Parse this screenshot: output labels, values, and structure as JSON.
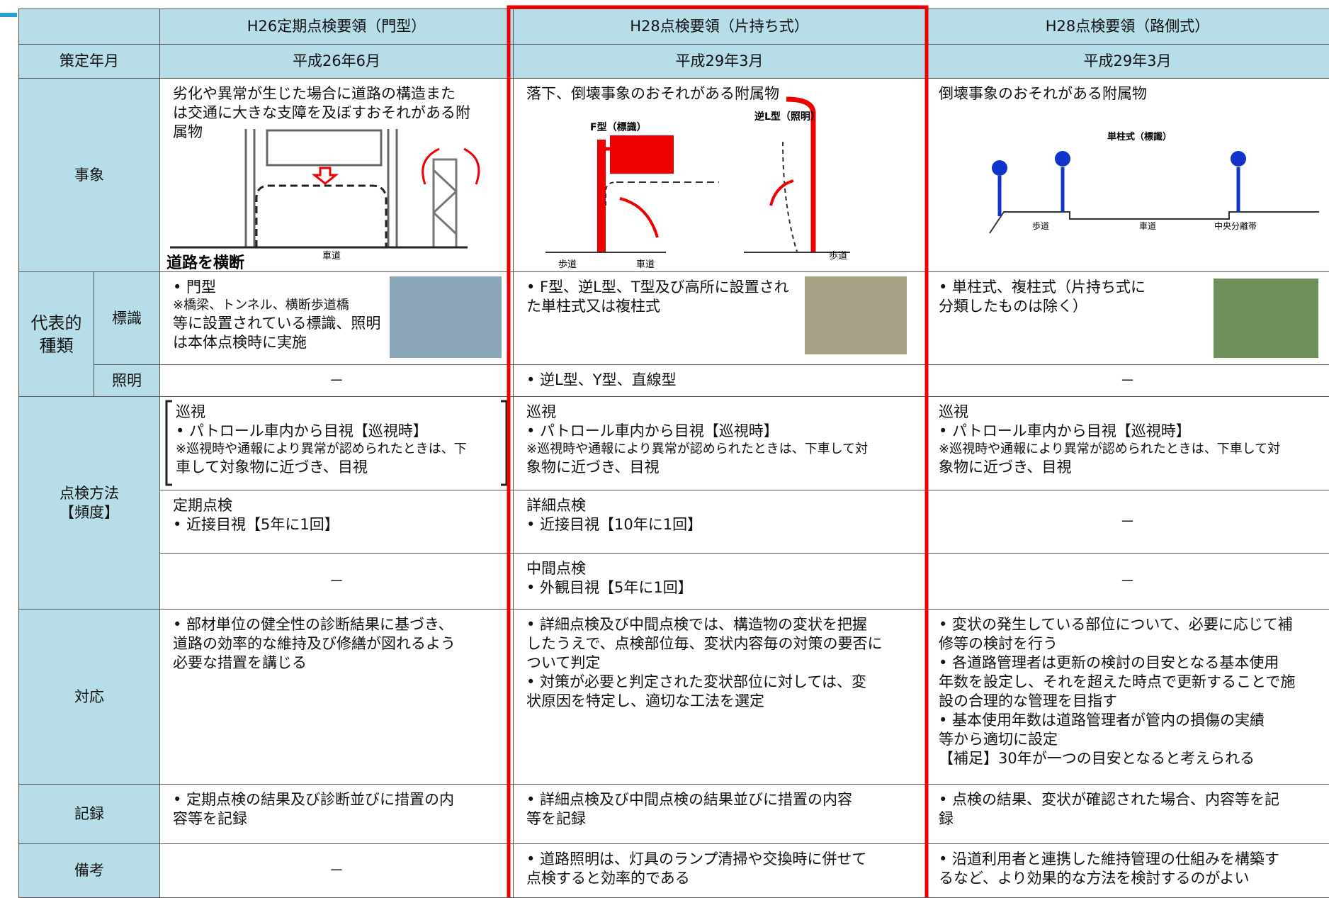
{
  "table": {
    "columns": [
      "H26定期点検要領（門型）",
      "H28点検要領（片持ち式）",
      "H28点検要領（路側式）"
    ],
    "rows": [
      {
        "label": "策定年月",
        "cells": [
          [
            "平成26年6月"
          ],
          [
            "平成29年3月"
          ],
          [
            "平成29年3月"
          ]
        ]
      },
      {
        "label": "事象",
        "cells": [
          [
            "劣化や異常が生じた場合に道路の構造また",
            "は交通に大きな支障を及ぼすおそれがある附",
            "属物"
          ],
          [
            "落下、倒壊事象のおそれがある附属物"
          ],
          [
            "倒壊事象のおそれがある附属物"
          ]
        ]
      },
      {
        "label": "標識",
        "cells": [
          [
            "• 門型",
            "※橋梁、トンネル、横断歩道橋",
            "等に設置されている標識、照明",
            "は本体点検時に実施"
          ],
          [
            "• F型、逆L型、T型及び高所に設置され",
            "た単柱式又は複柱式"
          ],
          [
            "• 単柱式、複柱式（片持ち式に",
            "分類したものは除く）"
          ]
        ]
      },
      {
        "label": "照明",
        "cells": [
          [
            "－"
          ],
          [
            "• 逆L型、Y型、直線型"
          ],
          [
            "－"
          ]
        ]
      },
      {
        "cells": [
          [
            "巡視",
            "• パトロール車内から目視【巡視時】",
            "※巡視時や通報により異常が認められたときは、下",
            "車して対象物に近づき、目視"
          ],
          [
            "巡視",
            "• パトロール車内から目視【巡視時】",
            "※巡視時や通報により異常が認められたときは、下車して対",
            "象物に近づき、目視"
          ],
          [
            "巡視",
            "• パトロール車内から目視【巡視時】",
            "※巡視時や通報により異常が認められたときは、下車して対",
            "象物に近づき、目視"
          ]
        ]
      },
      {
        "cells": [
          [
            "定期点検",
            "• 近接目視【5年に1回】"
          ],
          [
            "詳細点検",
            "• 近接目視【10年に1回】"
          ],
          [
            "－"
          ]
        ]
      },
      {
        "cells": [
          [
            "－"
          ],
          [
            "中間点検",
            "• 外観目視【5年に1回】"
          ],
          [
            "－"
          ]
        ]
      },
      {
        "label": "対応",
        "cells": [
          [
            "• 部材単位の健全性の診断結果に基づき、",
            "道路の効率的な維持及び修繕が図れるよう",
            "必要な措置を講じる"
          ],
          [
            "• 詳細点検及び中間点検では、構造物の変状を把握",
            "したうえで、点検部位毎、変状内容毎の対策の要否に",
            "ついて判定",
            "• 対策が必要と判定された変状部位に対しては、変",
            "状原因を特定し、適切な工法を選定"
          ],
          [
            "• 変状の発生している部位について、必要に応じて補",
            "修等の検討を行う",
            "• 各道路管理者は更新の検討の目安となる基本使用",
            "年数を設定し、それを超えた時点で更新することで施",
            "設の合理的な管理を目指す",
            "• 基本使用年数は道路管理者が管内の損傷の実績",
            "等から適切に設定",
            "【補足】30年が一つの目安となると考えられる"
          ]
        ]
      },
      {
        "label": "記録",
        "cells": [
          [
            "• 定期点検の結果及び診断並びに措置の内",
            "容等を記録"
          ],
          [
            "• 詳細点検及び中間点検の結果並びに措置の内容",
            "等を記録"
          ],
          [
            "• 点検の結果、変状が確認された場合、内容等を記",
            "録"
          ]
        ]
      },
      {
        "label": "備考",
        "cells": [
          [
            "－"
          ],
          [
            "• 道路照明は、灯具のランプ清掃や交換時に併せて",
            "点検すると効率的である"
          ],
          [
            "• 沿道利用者と連携した維持管理の仕組みを構築す",
            "るなど、より効果的な方法を検討するのがよい"
          ]
        ]
      }
    ],
    "groups": {
      "type": [
        "代表的",
        "種類"
      ],
      "method": [
        "点検方法",
        "【頻度】"
      ]
    }
  },
  "diagrams": {
    "gate": {
      "crossing": "道路を横断",
      "road": "車道"
    },
    "cantilever": {
      "f_type": "F型（標識）",
      "l_type": "逆L型（照明）",
      "sidewalk1": "歩道",
      "road": "車道",
      "sidewalk2": "歩道"
    },
    "roadside": {
      "single": "単柱式（標識）",
      "sidewalk": "歩道",
      "road": "車道",
      "median": "中央分離帯"
    }
  }
}
